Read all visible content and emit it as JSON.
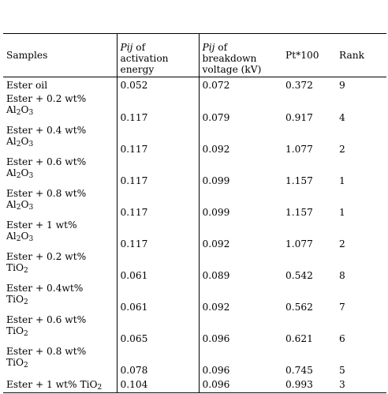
{
  "headers": {
    "samples": "Samples",
    "pij": "Pij",
    "activation_of": " of",
    "activation_rest": "activation energy",
    "breakdown_of": " of",
    "breakdown_rest": "breakdown voltage (kV)",
    "pt": "Pt*100",
    "rank": "Rank"
  },
  "rows": [
    {
      "sample_a": "Ester oil",
      "sample_b": "",
      "sub": "",
      "sample_c": "",
      "activation": "0.052",
      "breakdown": "0.072",
      "pt": "0.372",
      "rank": "9"
    },
    {
      "sample_a": "Ester + 0.2 wt%",
      "sample_b": "Al",
      "sub": "2",
      "sample_c": "O3",
      "activation": "0.117",
      "breakdown": "0.079",
      "pt": "0.917",
      "rank": "4"
    },
    {
      "sample_a": "Ester + 0.4 wt%",
      "sample_b": "Al",
      "sub": "2",
      "sample_c": "O3",
      "activation": "0.117",
      "breakdown": "0.092",
      "pt": "1.077",
      "rank": "2"
    },
    {
      "sample_a": "Ester + 0.6 wt%",
      "sample_b": "Al",
      "sub": "2",
      "sample_c": "O3",
      "activation": "0.117",
      "breakdown": "0.099",
      "pt": "1.157",
      "rank": "1"
    },
    {
      "sample_a": "Ester + 0.8 wt%",
      "sample_b": "Al",
      "sub": "2",
      "sample_c": "O3",
      "activation": "0.117",
      "breakdown": "0.099",
      "pt": "1.157",
      "rank": "1"
    },
    {
      "sample_a": "Ester + 1 wt%",
      "sample_b": "Al",
      "sub": "2",
      "sample_c": "O3",
      "activation": "0.117",
      "breakdown": "0.092",
      "pt": "1.077",
      "rank": "2"
    },
    {
      "sample_a": "Ester + 0.2 wt%",
      "sample_b": "TiO",
      "sub": "2",
      "sample_c": "",
      "activation": "0.061",
      "breakdown": "0.089",
      "pt": "0.542",
      "rank": "8"
    },
    {
      "sample_a": "Ester + 0.4wt%",
      "sample_b": "TiO",
      "sub": "2",
      "sample_c": "",
      "activation": "0.061",
      "breakdown": "0.092",
      "pt": "0.562",
      "rank": "7"
    },
    {
      "sample_a": "Ester + 0.6 wt%",
      "sample_b": "TiO",
      "sub": "2",
      "sample_c": "",
      "activation": "0.065",
      "breakdown": "0.096",
      "pt": "0.621",
      "rank": "6"
    },
    {
      "sample_a": "Ester + 0.8 wt%",
      "sample_b": "TiO",
      "sub": "2",
      "sample_c": "",
      "activation": "0.078",
      "breakdown": "0.096",
      "pt": "0.745",
      "rank": "5"
    },
    {
      "sample_a": "Ester + 1 wt% TiO",
      "sample_b": "",
      "sub": "2",
      "sample_c": "",
      "activation": "0.104",
      "breakdown": "0.096",
      "pt": "0.993",
      "rank": "3"
    }
  ]
}
